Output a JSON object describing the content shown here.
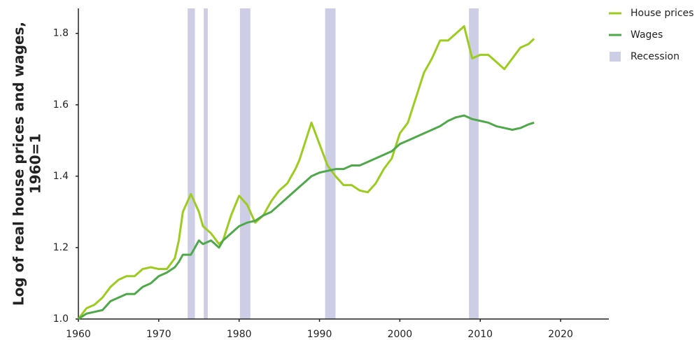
{
  "chart_data": {
    "type": "line",
    "ylabel": [
      "Log of real house prices and wages,",
      "1960=1"
    ],
    "x": [
      1960,
      1961,
      1962,
      1963,
      1964,
      1965,
      1966,
      1967,
      1968,
      1969,
      1970,
      1971,
      1972,
      1972.5,
      1973,
      1974,
      1975,
      1975.5,
      1976.5,
      1977.5,
      1978,
      1979,
      1980,
      1981,
      1982,
      1983,
      1984,
      1985,
      1986,
      1987,
      1987.5,
      1988,
      1989,
      1990,
      1991,
      1992,
      1993,
      1994,
      1995,
      1996,
      1997,
      1998,
      1999,
      2000,
      2001,
      2002,
      2003,
      2004,
      2005,
      2006,
      2007,
      2008,
      2009,
      2010,
      2011,
      2012,
      2013,
      2014,
      2015,
      2016,
      2016.7
    ],
    "series": [
      {
        "name": "House prices",
        "color": "#9ccc1e",
        "values": [
          1.0,
          1.03,
          1.04,
          1.06,
          1.09,
          1.11,
          1.12,
          1.12,
          1.14,
          1.145,
          1.14,
          1.14,
          1.17,
          1.22,
          1.3,
          1.35,
          1.3,
          1.26,
          1.24,
          1.21,
          1.22,
          1.29,
          1.345,
          1.32,
          1.27,
          1.29,
          1.33,
          1.36,
          1.38,
          1.42,
          1.445,
          1.48,
          1.55,
          1.49,
          1.43,
          1.4,
          1.375,
          1.375,
          1.36,
          1.355,
          1.38,
          1.42,
          1.45,
          1.52,
          1.55,
          1.62,
          1.69,
          1.73,
          1.78,
          1.78,
          1.8,
          1.82,
          1.73,
          1.74,
          1.74,
          1.72,
          1.7,
          1.73,
          1.76,
          1.77,
          1.785
        ]
      },
      {
        "name": "Wages",
        "color": "#4fa84a",
        "values": [
          1.0,
          1.015,
          1.02,
          1.025,
          1.05,
          1.06,
          1.07,
          1.07,
          1.09,
          1.1,
          1.12,
          1.13,
          1.145,
          1.16,
          1.18,
          1.18,
          1.22,
          1.21,
          1.22,
          1.2,
          1.22,
          1.24,
          1.26,
          1.27,
          1.275,
          1.29,
          1.3,
          1.32,
          1.34,
          1.36,
          1.37,
          1.38,
          1.4,
          1.41,
          1.415,
          1.42,
          1.42,
          1.43,
          1.43,
          1.44,
          1.45,
          1.46,
          1.47,
          1.49,
          1.5,
          1.51,
          1.52,
          1.53,
          1.54,
          1.555,
          1.565,
          1.57,
          1.56,
          1.555,
          1.55,
          1.54,
          1.535,
          1.53,
          1.535,
          1.545,
          1.55
        ]
      }
    ],
    "recession_name": "Recession",
    "recession_color": "#cdcde6",
    "recessions": [
      [
        1973.6,
        1974.5
      ],
      [
        1975.6,
        1976.1
      ],
      [
        1980.1,
        1981.4
      ],
      [
        1990.7,
        1992.0
      ],
      [
        2008.6,
        2009.8
      ]
    ],
    "xlim": [
      1960,
      2026
    ],
    "xticks": [
      1960,
      1970,
      1980,
      1990,
      2000,
      2010,
      2020
    ],
    "ylim": [
      1.0,
      1.87
    ],
    "yticks": [
      {
        "value": 1,
        "label": "1.0"
      },
      1.2,
      1.4,
      1.6,
      1.8
    ],
    "legend": "top-right"
  }
}
